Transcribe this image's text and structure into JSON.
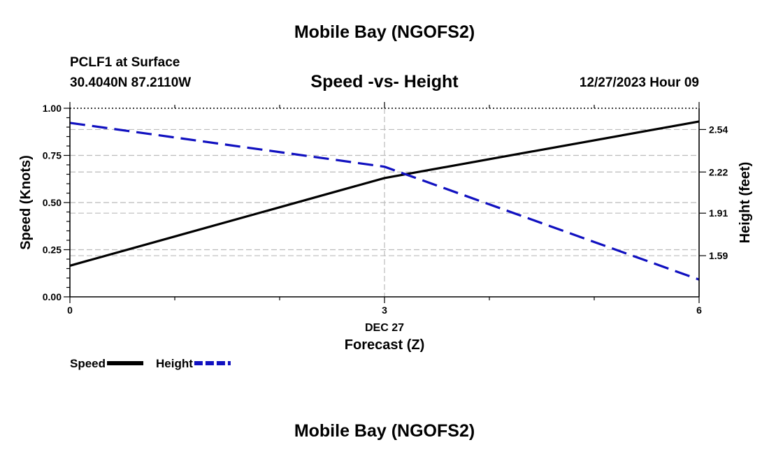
{
  "page_title_top": "Mobile Bay (NGOFS2)",
  "page_title_bottom": "Mobile Bay (NGOFS2)",
  "station": {
    "name": "PCLF1 at Surface",
    "coords": "30.4040N  87.2110W"
  },
  "forecast_time": "12/27/2023 Hour 09",
  "chart_data": {
    "type": "line",
    "title": "Speed -vs- Height",
    "xlabel": "Forecast (Z)",
    "ylabel_left": "Speed (Knots)",
    "ylabel_right": "Height (feet)",
    "x_ticks": [
      {
        "value": 0,
        "label": "0"
      },
      {
        "value": 3,
        "label": "3"
      },
      {
        "value": 6,
        "label": "6"
      }
    ],
    "x_date_label": "DEC 27",
    "x_date_at": 3,
    "xlim": [
      0,
      6
    ],
    "ylim_left": [
      0,
      1
    ],
    "left_ticks": [
      {
        "value": 0,
        "label": "0.00"
      },
      {
        "value": 0.25,
        "label": "0.25"
      },
      {
        "value": 0.5,
        "label": "0.50"
      },
      {
        "value": 0.75,
        "label": "0.75"
      },
      {
        "value": 1,
        "label": "1.00"
      }
    ],
    "ylim_right": [
      1.28,
      2.7
    ],
    "right_ticks": [
      {
        "value": 1.59,
        "label": "1.59"
      },
      {
        "value": 1.91,
        "label": "1.91"
      },
      {
        "value": 2.22,
        "label": "2.22"
      },
      {
        "value": 2.54,
        "label": "2.54"
      }
    ],
    "series": [
      {
        "name": "Speed",
        "axis": "left",
        "color": "#000000",
        "dash": "solid",
        "x": [
          0,
          3,
          6
        ],
        "y": [
          0.165,
          0.63,
          0.93
        ]
      },
      {
        "name": "Height",
        "axis": "right",
        "color": "#1010c0",
        "dash": "dashed",
        "x": [
          0,
          3,
          6
        ],
        "y": [
          2.59,
          2.26,
          1.41
        ]
      }
    ],
    "grid": true,
    "legend_position": "bottom-left"
  }
}
